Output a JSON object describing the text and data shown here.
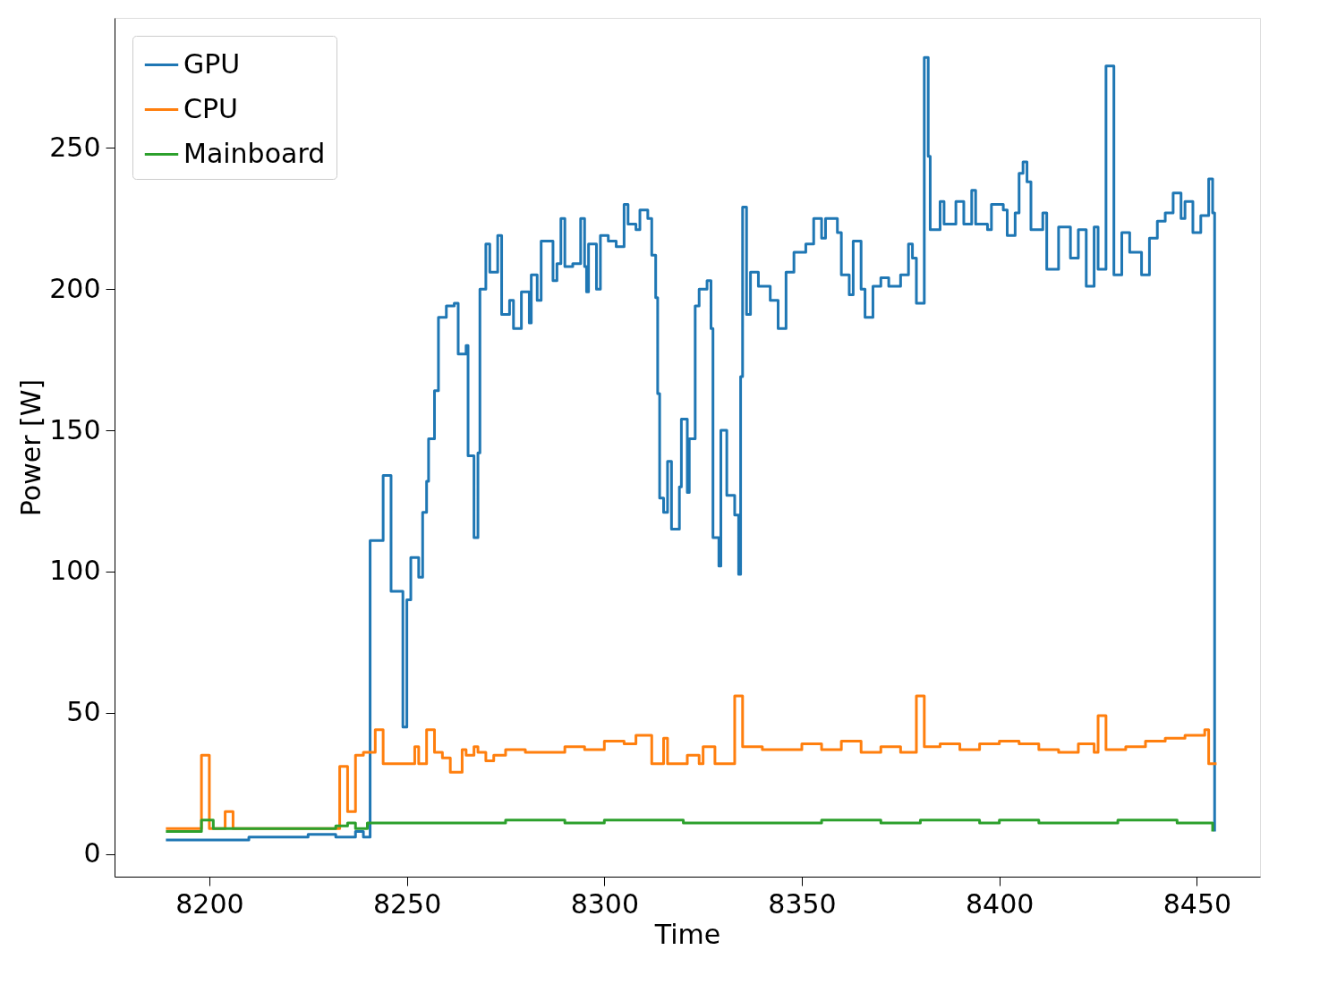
{
  "chart_data": {
    "type": "step",
    "xlabel": "Time",
    "ylabel": "Power [W]",
    "xlim": [
      8176,
      8466
    ],
    "ylim": [
      -8,
      296
    ],
    "xticks": [
      8200,
      8250,
      8300,
      8350,
      8400,
      8450
    ],
    "yticks": [
      0,
      50,
      100,
      150,
      200,
      250
    ],
    "grid": false,
    "legend": "top left",
    "line_style": "solid",
    "marker": "none",
    "series": [
      {
        "name": "GPU",
        "color": "#1f77b4",
        "x": [
          8189,
          8210,
          8225,
          8232,
          8237,
          8239,
          8240.7,
          8244,
          8246,
          8249,
          8250,
          8251,
          8253,
          8254,
          8255,
          8255.5,
          8257,
          8258,
          8260,
          8262,
          8263,
          8265,
          8265.5,
          8267,
          8268,
          8268.5,
          8270,
          8271,
          8273,
          8274,
          8276,
          8277,
          8279,
          8281,
          8281.5,
          8283,
          8284,
          8287,
          8288,
          8289,
          8290,
          8292,
          8294,
          8295,
          8295.5,
          8296,
          8298,
          8299,
          8301,
          8303,
          8305,
          8306,
          8308,
          8309,
          8311,
          8312,
          8313,
          8313.5,
          8314,
          8315,
          8316,
          8317,
          8319,
          8319.5,
          8321,
          8321.5,
          8323,
          8324,
          8326,
          8327,
          8327.5,
          8329,
          8329.5,
          8331,
          8333,
          8334,
          8334.5,
          8335,
          8336,
          8337,
          8339,
          8342,
          8344,
          8346,
          8348,
          8351,
          8353,
          8355,
          8356,
          8359,
          8360,
          8362,
          8363,
          8365,
          8366,
          8368,
          8370,
          8372,
          8375,
          8377,
          8378,
          8379,
          8381,
          8382,
          8382.5,
          8385,
          8386,
          8389,
          8391,
          8393,
          8394,
          8397,
          8398,
          8401,
          8402,
          8404,
          8405,
          8406,
          8407,
          8408,
          8411,
          8412,
          8415,
          8418,
          8420,
          8422,
          8424,
          8425,
          8427,
          8429,
          8431,
          8433,
          8436,
          8438,
          8440,
          8442,
          8444,
          8446,
          8447,
          8449,
          8451,
          8453,
          8454,
          8454.5
        ],
        "values": [
          5,
          6,
          7,
          6,
          8,
          6,
          111,
          134,
          93,
          45,
          90,
          105,
          98,
          121,
          132,
          147,
          164,
          190,
          194,
          195,
          177,
          180,
          141,
          112,
          142,
          200,
          216,
          206,
          219,
          191,
          196,
          186,
          199,
          188,
          205,
          196,
          217,
          203,
          209,
          225,
          208,
          209,
          225,
          208,
          199,
          216,
          200,
          219,
          217,
          215,
          230,
          223,
          221,
          228,
          225,
          212,
          197,
          163,
          126,
          121,
          139,
          115,
          130,
          154,
          128,
          147,
          194,
          200,
          203,
          186,
          112,
          102,
          150,
          127,
          120,
          99,
          169,
          229,
          191,
          206,
          201,
          196,
          186,
          206,
          213,
          216,
          225,
          218,
          225,
          220,
          205,
          198,
          217,
          200,
          190,
          201,
          204,
          201,
          205,
          216,
          211,
          195,
          282,
          247,
          221,
          231,
          223,
          231,
          223,
          235,
          223,
          221,
          230,
          228,
          219,
          227,
          241,
          245,
          238,
          221,
          227,
          207,
          222,
          211,
          221,
          201,
          222,
          207,
          279,
          205,
          220,
          213,
          205,
          218,
          224,
          227,
          234,
          225,
          231,
          220,
          226,
          239,
          227,
          8
        ]
      },
      {
        "name": "CPU",
        "color": "#ff7f0e",
        "x": [
          8189,
          8198,
          8200,
          8204,
          8206,
          8233,
          8235,
          8237,
          8239,
          8242,
          8244,
          8252,
          8253,
          8255,
          8257,
          8259,
          8261,
          8264,
          8265,
          8267,
          8268,
          8270,
          8272,
          8275,
          8280,
          8290,
          8295,
          8300,
          8305,
          8308,
          8312,
          8315,
          8316,
          8321,
          8324,
          8325,
          8328,
          8333,
          8335,
          8340,
          8350,
          8355,
          8360,
          8365,
          8370,
          8375,
          8379,
          8381,
          8385,
          8390,
          8395,
          8400,
          8405,
          8410,
          8415,
          8420,
          8424,
          8425,
          8427,
          8432,
          8437,
          8442,
          8447,
          8452,
          8453,
          8455
        ],
        "values": [
          9,
          35,
          9,
          15,
          9,
          31,
          15,
          35,
          36,
          44,
          32,
          38,
          32,
          44,
          36,
          34,
          29,
          37,
          35,
          38,
          36,
          33,
          35,
          37,
          36,
          38,
          37,
          40,
          39,
          42,
          32,
          41,
          32,
          35,
          32,
          38,
          32,
          56,
          38,
          37,
          39,
          37,
          40,
          36,
          38,
          36,
          56,
          38,
          39,
          37,
          39,
          40,
          39,
          37,
          36,
          39,
          36,
          49,
          37,
          38,
          40,
          41,
          42,
          44,
          32,
          32
        ]
      },
      {
        "name": "Mainboard",
        "color": "#2ca02c",
        "x": [
          8189,
          8198,
          8201,
          8220,
          8232,
          8235,
          8237,
          8240,
          8260,
          8275,
          8290,
          8300,
          8320,
          8340,
          8355,
          8370,
          8380,
          8395,
          8400,
          8410,
          8430,
          8445,
          8453,
          8454
        ],
        "values": [
          8,
          12,
          9,
          9,
          10,
          11,
          9,
          11,
          11,
          12,
          11,
          12,
          11,
          11,
          12,
          11,
          12,
          11,
          12,
          11,
          12,
          11,
          11,
          8
        ]
      }
    ]
  }
}
